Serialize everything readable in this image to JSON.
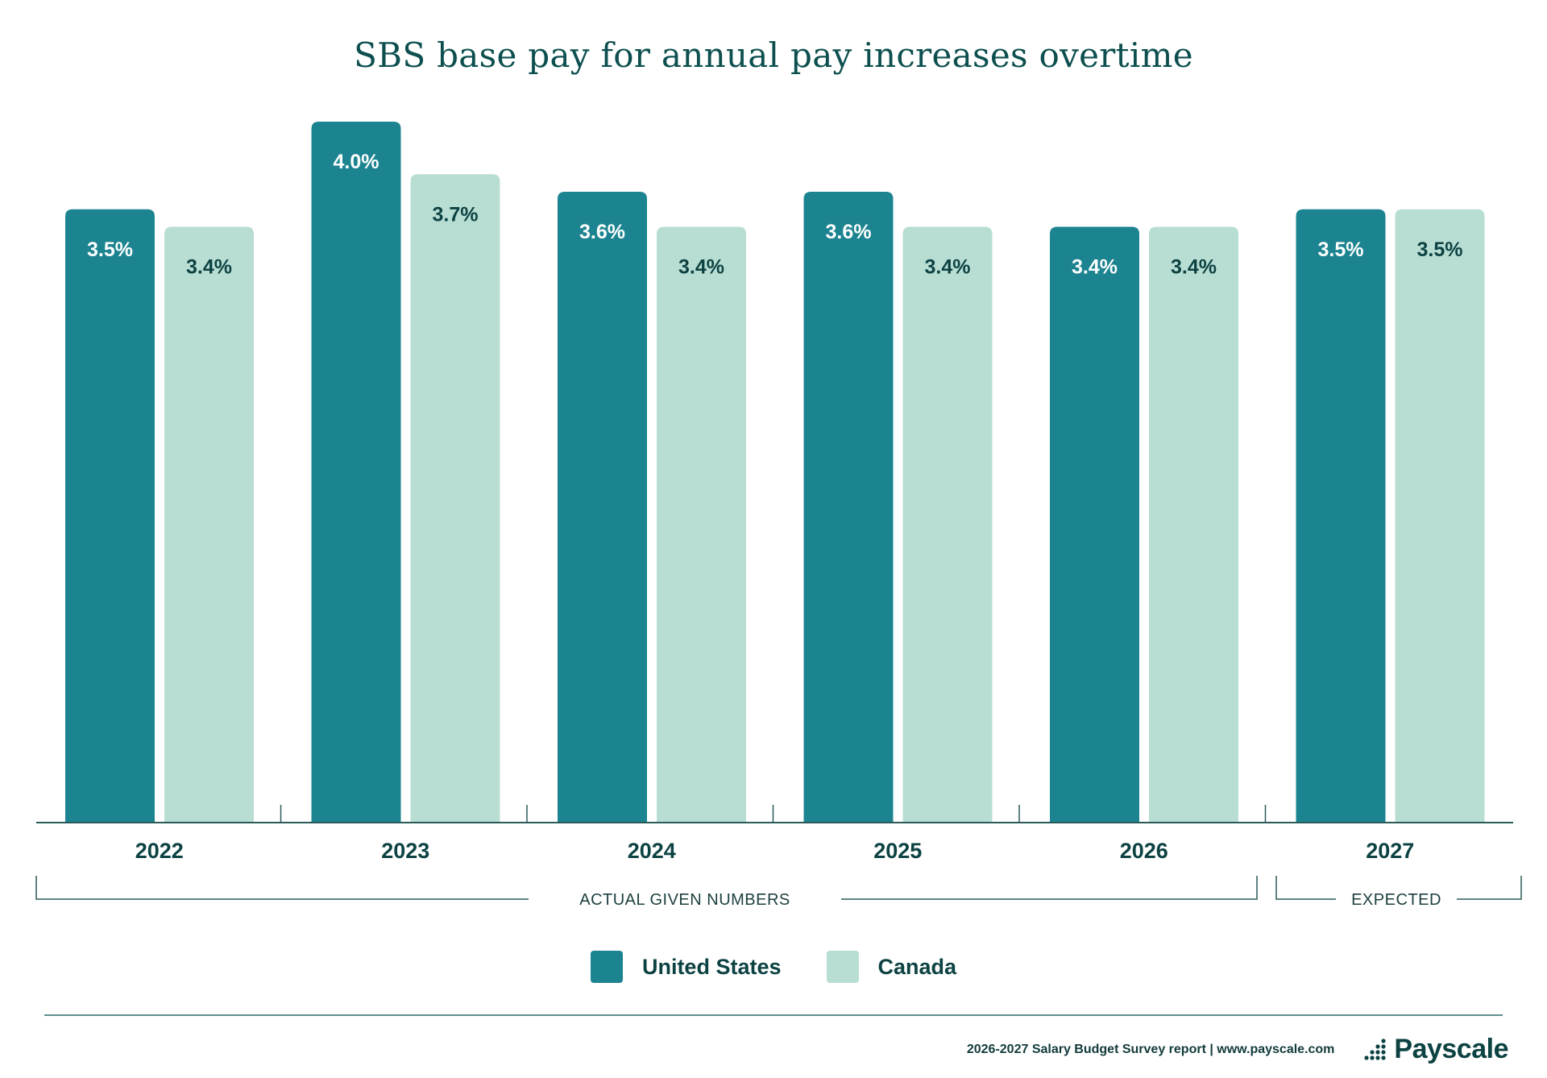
{
  "title": "SBS base pay for annual pay increases overtime",
  "chart_data": {
    "type": "bar",
    "categories": [
      "2022",
      "2023",
      "2024",
      "2025",
      "2026",
      "2027"
    ],
    "series": [
      {
        "name": "United States",
        "values": [
          3.5,
          4.0,
          3.6,
          3.6,
          3.4,
          3.5
        ],
        "labels": [
          "3.5%",
          "4.0%",
          "3.6%",
          "3.6%",
          "3.4%",
          "3.5%"
        ],
        "color": "#1c8490",
        "label_color": "#ffffff"
      },
      {
        "name": "Canada",
        "values": [
          3.4,
          3.7,
          3.4,
          3.4,
          3.4,
          3.5
        ],
        "labels": [
          "3.4%",
          "3.7%",
          "3.4%",
          "3.4%",
          "3.4%",
          "3.5%"
        ],
        "color": "#b8ded4",
        "label_color": "#0d4242"
      }
    ],
    "ylim": [
      0,
      4.0
    ],
    "groups": [
      {
        "label": "ACTUAL GIVEN NUMBERS",
        "categories": [
          "2022",
          "2023",
          "2024",
          "2025",
          "2026"
        ]
      },
      {
        "label": "EXPECTED",
        "categories": [
          "2027"
        ]
      }
    ],
    "legend": "bottom-center",
    "grid": false
  },
  "legend": {
    "items": [
      {
        "label": "United States",
        "color": "#1c8490"
      },
      {
        "label": "Canada",
        "color": "#b8ded4"
      }
    ]
  },
  "footer": {
    "text": "2026-2027 Salary Budget Survey report | www.payscale.com",
    "brand": "Payscale",
    "brand_icon": "payscale-dots-icon"
  }
}
